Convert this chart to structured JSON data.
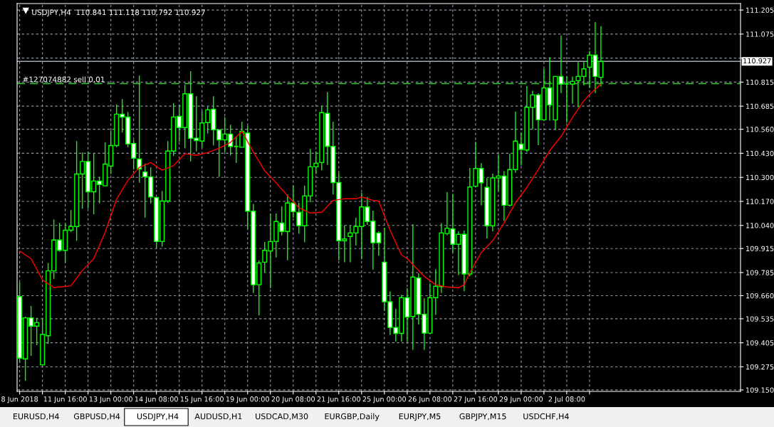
{
  "chart_data": {
    "type": "candlestick",
    "title": "USDJPY,H4  110.841 111.118 110.792 110.927",
    "categories": [
      "8 Jun 2018",
      null,
      null,
      null,
      null,
      null,
      null,
      null,
      "11 Jun 16:00",
      null,
      null,
      null,
      null,
      null,
      null,
      null,
      "13 Jun 00:00",
      null,
      null,
      null,
      null,
      null,
      null,
      null,
      "14 Jun 08:00",
      null,
      null,
      null,
      null,
      null,
      null,
      null,
      "15 Jun 16:00",
      null,
      null,
      null,
      null,
      null,
      null,
      null,
      "19 Jun 00:00",
      null,
      null,
      null,
      null,
      null,
      null,
      null,
      "20 Jun 08:00",
      null,
      null,
      null,
      null,
      null,
      null,
      null,
      "21 Jun 16:00",
      null,
      null,
      null,
      null,
      null,
      null,
      null,
      "25 Jun 00:00",
      null,
      null,
      null,
      null,
      null,
      null,
      null,
      "26 Jun 08:00",
      null,
      null,
      null,
      null,
      null,
      null,
      null,
      "27 Jun 16:00",
      null,
      null,
      null,
      null,
      null,
      null,
      null,
      "29 Jun 00:00",
      null,
      null,
      null,
      null,
      null,
      null,
      null,
      "2 Jul 08:00",
      null,
      null,
      null,
      null,
      null,
      null
    ],
    "series": [
      {
        "type": "candlestick",
        "color": "#00ff00",
        "ohlc": [
          [
            109.655,
            109.732,
            109.296,
            109.322
          ],
          [
            109.318,
            109.546,
            109.2,
            109.54
          ],
          [
            109.54,
            109.604,
            109.334,
            109.495
          ],
          [
            109.495,
            109.54,
            109.392,
            109.514
          ],
          [
            109.286,
            109.54,
            109.286,
            109.45
          ],
          [
            109.443,
            109.837,
            109.399,
            109.794
          ],
          [
            109.794,
            110.072,
            109.751,
            109.961
          ],
          [
            109.961,
            110.053,
            109.898,
            109.905
          ],
          [
            109.905,
            110.053,
            109.837,
            110.014
          ],
          [
            110.014,
            110.123,
            110.004,
            110.034
          ],
          [
            110.034,
            110.496,
            109.957,
            110.318
          ],
          [
            110.318,
            110.434,
            110.13,
            110.386
          ],
          [
            110.386,
            110.44,
            110.132,
            110.222
          ],
          [
            110.222,
            110.428,
            110.1,
            110.28
          ],
          [
            110.28,
            110.303,
            110.159,
            110.261
          ],
          [
            110.254,
            110.489,
            110.252,
            110.372
          ],
          [
            110.361,
            110.553,
            110.318,
            110.472
          ],
          [
            110.472,
            110.694,
            110.463,
            110.642
          ],
          [
            110.642,
            110.723,
            110.543,
            110.626
          ],
          [
            110.626,
            110.653,
            110.463,
            110.48
          ],
          [
            110.483,
            110.502,
            110.342,
            110.403
          ],
          [
            110.399,
            110.851,
            110.271,
            110.345
          ],
          [
            110.329,
            110.374,
            110.082,
            110.303
          ],
          [
            110.303,
            110.354,
            110.159,
            110.194
          ],
          [
            110.191,
            110.191,
            109.918,
            109.953
          ],
          [
            109.953,
            110.226,
            109.925,
            110.172
          ],
          [
            110.172,
            110.496,
            110.162,
            110.442
          ],
          [
            110.442,
            110.701,
            110.415,
            110.626
          ],
          [
            110.63,
            110.694,
            110.492,
            110.569
          ],
          [
            110.569,
            110.8,
            110.457,
            110.752
          ],
          [
            110.752,
            110.874,
            110.386,
            110.511
          ],
          [
            110.512,
            110.739,
            110.44,
            110.499
          ],
          [
            110.496,
            110.658,
            110.461,
            110.594
          ],
          [
            110.596,
            110.682,
            110.537,
            110.665
          ],
          [
            110.669,
            110.739,
            110.472,
            110.557
          ],
          [
            110.557,
            110.557,
            110.303,
            110.503
          ],
          [
            110.503,
            110.626,
            110.438,
            110.534
          ],
          [
            110.534,
            110.585,
            110.419,
            110.467
          ],
          [
            110.467,
            110.521,
            110.378,
            110.467
          ],
          [
            110.463,
            110.601,
            110.463,
            110.549
          ],
          [
            110.54,
            110.579,
            110.021,
            110.117
          ],
          [
            110.117,
            110.156,
            109.674,
            109.719
          ],
          [
            109.719,
            109.85,
            109.553,
            109.837
          ],
          [
            109.841,
            109.95,
            109.786,
            109.905
          ],
          [
            109.902,
            110.104,
            109.7,
            109.953
          ],
          [
            109.953,
            110.104,
            109.867,
            110.061
          ],
          [
            110.053,
            110.143,
            109.986,
            110.007
          ],
          [
            110.007,
            110.207,
            109.851,
            110.161
          ],
          [
            110.161,
            110.256,
            110.081,
            110.115
          ],
          [
            110.111,
            110.162,
            109.995,
            110.038
          ],
          [
            110.038,
            110.255,
            109.948,
            110.199
          ],
          [
            110.199,
            110.454,
            110.165,
            110.357
          ],
          [
            110.357,
            110.44,
            110.318,
            110.376
          ],
          [
            110.38,
            110.688,
            110.338,
            110.65
          ],
          [
            110.646,
            110.761,
            110.367,
            110.467
          ],
          [
            110.467,
            110.601,
            110.207,
            110.272
          ],
          [
            110.272,
            110.325,
            109.851,
            109.957
          ],
          [
            109.957,
            110.04,
            109.841,
            109.967
          ],
          [
            109.98,
            110.04,
            109.841,
            109.999
          ],
          [
            109.999,
            110.081,
            109.931,
            110.034
          ],
          [
            110.034,
            110.217,
            109.857,
            110.14
          ],
          [
            110.14,
            110.194,
            110.043,
            110.061
          ],
          [
            110.063,
            110.12,
            109.8,
            109.946
          ],
          [
            109.999,
            110.008,
            109.876,
            109.946
          ],
          [
            109.841,
            110.027,
            109.578,
            109.627
          ],
          [
            109.627,
            109.683,
            109.447,
            109.488
          ],
          [
            109.488,
            109.589,
            109.411,
            109.456
          ],
          [
            109.456,
            109.665,
            109.411,
            109.649
          ],
          [
            109.649,
            109.7,
            109.411,
            109.544
          ],
          [
            109.547,
            110.047,
            109.367,
            109.761
          ],
          [
            109.756,
            109.781,
            109.504,
            109.559
          ],
          [
            109.559,
            109.645,
            109.367,
            109.457
          ],
          [
            109.457,
            109.726,
            109.457,
            109.649
          ],
          [
            109.649,
            109.803,
            109.556,
            109.711
          ],
          [
            109.709,
            110.051,
            109.675,
            109.999
          ],
          [
            109.996,
            110.22,
            109.987,
            110.025
          ],
          [
            110.021,
            110.21,
            109.893,
            109.938
          ],
          [
            109.938,
            110.008,
            109.771,
            109.992
          ],
          [
            109.992,
            110.012,
            109.684,
            109.777
          ],
          [
            109.777,
            110.351,
            109.765,
            110.248
          ],
          [
            110.252,
            110.492,
            110.246,
            110.348
          ],
          [
            110.348,
            110.377,
            110.149,
            110.271
          ],
          [
            110.246,
            110.297,
            109.97,
            110.038
          ],
          [
            110.038,
            110.32,
            110.008,
            110.297
          ],
          [
            110.297,
            110.423,
            110.226,
            110.307
          ],
          [
            110.307,
            110.333,
            110.064,
            110.149
          ],
          [
            110.149,
            110.428,
            110.143,
            110.342
          ],
          [
            110.342,
            110.656,
            110.325,
            110.496
          ],
          [
            110.48,
            110.543,
            110.364,
            110.451
          ],
          [
            110.448,
            110.793,
            110.436,
            110.679
          ],
          [
            110.679,
            110.768,
            110.56,
            110.746
          ],
          [
            110.746,
            110.755,
            110.474,
            110.611
          ],
          [
            110.611,
            110.887,
            110.607,
            110.784
          ],
          [
            110.784,
            110.949,
            110.607,
            110.692
          ],
          [
            110.611,
            110.846,
            110.556,
            110.846
          ],
          [
            110.846,
            111.067,
            110.756,
            110.804
          ],
          [
            110.806,
            110.846,
            110.596,
            110.806
          ],
          [
            110.804,
            110.845,
            110.698,
            110.819
          ],
          [
            110.823,
            110.923,
            110.679,
            110.846
          ],
          [
            110.846,
            110.923,
            110.797,
            110.887
          ],
          [
            110.896,
            110.983,
            110.784,
            110.961
          ],
          [
            110.961,
            111.14,
            110.756,
            110.846
          ],
          [
            110.841,
            111.118,
            110.792,
            110.927
          ]
        ]
      },
      {
        "type": "line",
        "color": "#ff0000",
        "values": [
          109.901,
          null,
          109.86,
          null,
          109.745,
          null,
          109.704,
          null,
          109.71,
          109.713,
          null,
          109.796,
          null,
          109.86,
          null,
          110.002,
          null,
          110.181,
          null,
          110.284,
          null,
          110.354,
          null,
          110.38,
          null,
          110.339,
          null,
          110.363,
          null,
          110.428,
          null,
          110.419,
          null,
          110.434,
          null,
          110.457,
          null,
          110.489,
          null,
          110.549,
          null,
          110.438,
          null,
          110.335,
          null,
          110.271,
          null,
          110.2,
          null,
          110.136,
          null,
          110.107,
          null,
          110.111,
          null,
          110.175,
          null,
          110.184,
          null,
          110.184,
          110.194,
          null,
          110.175,
          110.172,
          null,
          110.014,
          null,
          109.88,
          109.86,
          109.828,
          null,
          109.764,
          null,
          109.719,
          null,
          109.707,
          null,
          109.703,
          109.719,
          109.784,
          null,
          109.893,
          null,
          109.957,
          null,
          110.053,
          null,
          110.162,
          null,
          110.245,
          null,
          110.342,
          null,
          110.444,
          null,
          110.521,
          null,
          110.624,
          null,
          110.714,
          110.748,
          null,
          110.804
        ]
      }
    ],
    "ylim": [
      109.142,
      111.24
    ],
    "yticks": [
      {
        "value": 109.15,
        "label": "109.150"
      },
      {
        "value": 109.275,
        "label": "109.275"
      },
      {
        "value": 109.405,
        "label": "109.405"
      },
      {
        "value": 109.535,
        "label": "109.535"
      },
      {
        "value": 109.66,
        "label": "109.660"
      },
      {
        "value": 109.785,
        "label": "109.785"
      },
      {
        "value": 109.915,
        "label": "109.915"
      },
      {
        "value": 110.04,
        "label": "110.040"
      },
      {
        "value": 110.17,
        "label": "110.170"
      },
      {
        "value": 110.3,
        "label": "110.300"
      },
      {
        "value": 110.43,
        "label": "110.430"
      },
      {
        "value": 110.56,
        "label": "110.560"
      },
      {
        "value": 110.685,
        "label": "110.685"
      },
      {
        "value": 110.815,
        "label": "110.815"
      },
      {
        "value": 110.945,
        "label": null
      },
      {
        "value": 111.075,
        "label": "111.075"
      },
      {
        "value": 111.205,
        "label": "111.205"
      }
    ],
    "ref_lines": [
      {
        "axis": "y",
        "value": 110.927,
        "label": "110.927",
        "color": "#9ea7b3",
        "line_style": "solid"
      },
      {
        "axis": "y",
        "value": 110.807,
        "label": "#127074882 sell 0.01",
        "color": "#33cc33",
        "line_style": "dashed"
      }
    ],
    "grid": true,
    "annotations": [
      "EURUSD,H4",
      "GBPUSD,H4",
      "USDJPY,H4",
      "AUDUSD,H1",
      "USDCAD,M30",
      "EURGBP,Daily",
      "EURJPY,M5",
      "GBPJPY,M15",
      "USDCHF,H4"
    ]
  }
}
